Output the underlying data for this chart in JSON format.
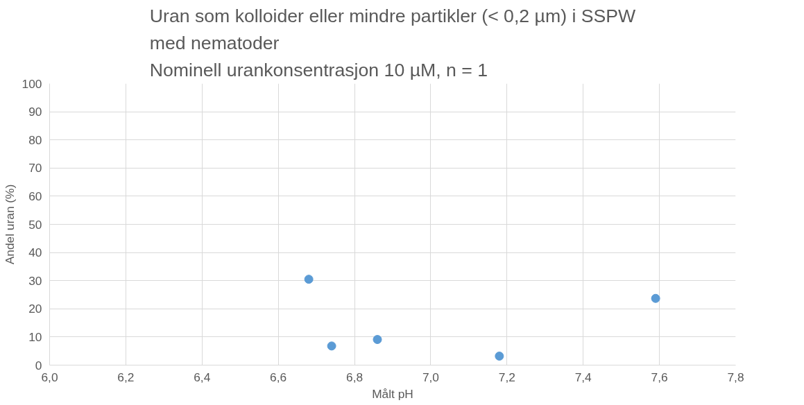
{
  "chart_data": {
    "type": "scatter",
    "title": "Uran som kolloider eller mindre partikler (< 0,2 µm) i SSPW\nmed nematoder\nNominell urankonsentrasjon 10 µM, n = 1",
    "xlabel": "Målt pH",
    "ylabel": "Andel uran (%)",
    "series": [
      {
        "color": "#5b9bd5",
        "x": [
          6.68,
          6.74,
          6.86,
          7.18,
          7.59
        ],
        "values": [
          30.5,
          6.8,
          9.1,
          3.2,
          23.7
        ]
      }
    ],
    "xlim": [
      6.0,
      7.8
    ],
    "xticks": [
      {
        "value": 6.0,
        "label": "6,0"
      },
      {
        "value": 6.2,
        "label": "6,2"
      },
      {
        "value": 6.4,
        "label": "6,4"
      },
      {
        "value": 6.6,
        "label": "6,6"
      },
      {
        "value": 6.8,
        "label": "6,8"
      },
      {
        "value": 7.0,
        "label": "7,0"
      },
      {
        "value": 7.2,
        "label": "7,2"
      },
      {
        "value": 7.4,
        "label": "7,4"
      },
      {
        "value": 7.6,
        "label": "7,6"
      },
      {
        "value": 7.8,
        "label": "7,8"
      }
    ],
    "ylim": [
      0,
      100
    ],
    "yticks": [
      0,
      10,
      20,
      30,
      40,
      50,
      60,
      70,
      80,
      90,
      100
    ],
    "grid": true,
    "marker": "circle"
  }
}
